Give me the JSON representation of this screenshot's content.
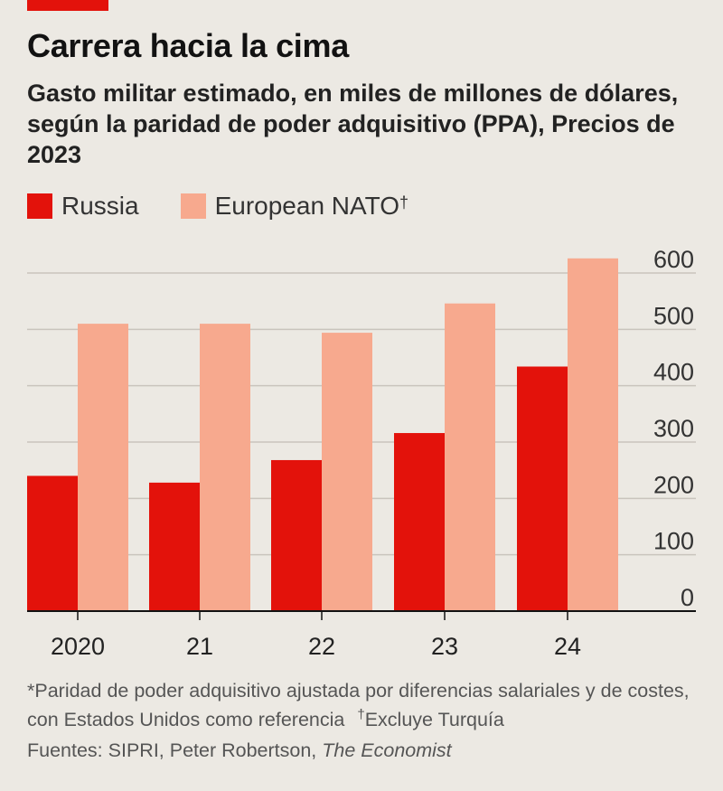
{
  "header": {
    "title": "Carrera hacia la cima",
    "subtitle": "Gasto militar estimado, en miles de millones de dólares, según la paridad de poder adquisitivo (PPA), Precios de 2023"
  },
  "legend": {
    "russia": "Russia",
    "nato": "European NATO",
    "nato_mark": "†"
  },
  "colors": {
    "russia": "#e3120b",
    "nato": "#f7a98e",
    "accent": "#e3120b"
  },
  "chart_data": {
    "type": "bar",
    "categories": [
      "2020",
      "21",
      "22",
      "23",
      "24"
    ],
    "series": [
      {
        "name": "Russia",
        "values": [
          240,
          228,
          268,
          316,
          434
        ]
      },
      {
        "name": "European NATO",
        "values": [
          510,
          510,
          494,
          546,
          626
        ]
      }
    ],
    "yticks": [
      0,
      100,
      200,
      300,
      400,
      500,
      600
    ],
    "ylim": [
      0,
      630
    ],
    "ylabel_position": "right"
  },
  "footnote": {
    "text": "*Paridad de poder adquisitivo ajustada por diferencias salariales y de costes, con Estados Unidos como referencia",
    "dagger_mark": "†",
    "dagger_text": "Excluye Turquía"
  },
  "sources": {
    "prefix": "Fuentes: SIPRI, Peter Robertson, ",
    "publication": "The Economist"
  }
}
